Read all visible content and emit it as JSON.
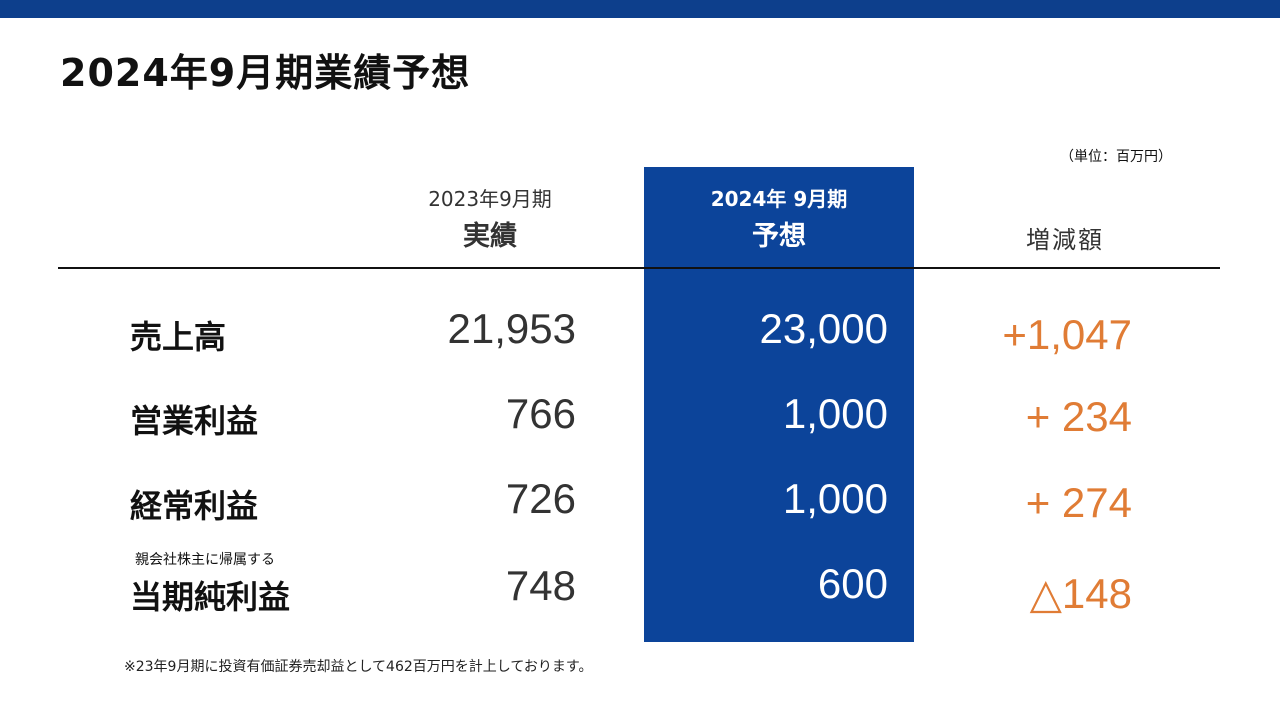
{
  "title": "2024年9月期業績予想",
  "unit_note": "（単位：百万円）",
  "headers": {
    "actual": {
      "line1": "2023年9月期",
      "line2": "実績"
    },
    "forecast": {
      "line1": "2024年 9月期",
      "line2": "予想"
    },
    "diff": "増減額"
  },
  "rows": [
    {
      "label": "売上高",
      "sublabel": "",
      "actual": "21,953",
      "forecast": "23,000",
      "diff": "+1,047"
    },
    {
      "label": "営業利益",
      "sublabel": "",
      "actual": "766",
      "forecast": "1,000",
      "diff": "+ 234"
    },
    {
      "label": "経常利益",
      "sublabel": "",
      "actual": "726",
      "forecast": "1,000",
      "diff": "+ 274"
    },
    {
      "label": "当期純利益",
      "sublabel": "親会社株主に帰属する",
      "actual": "748",
      "forecast": "600",
      "diff": "△148"
    }
  ],
  "footnote": "※23年9月期に投資有価証券売却益として462百万円を計上しております。",
  "colors": {
    "top_bar": "#0d3f8c",
    "highlight": "#0c449a",
    "diff_text": "#e07c35"
  }
}
